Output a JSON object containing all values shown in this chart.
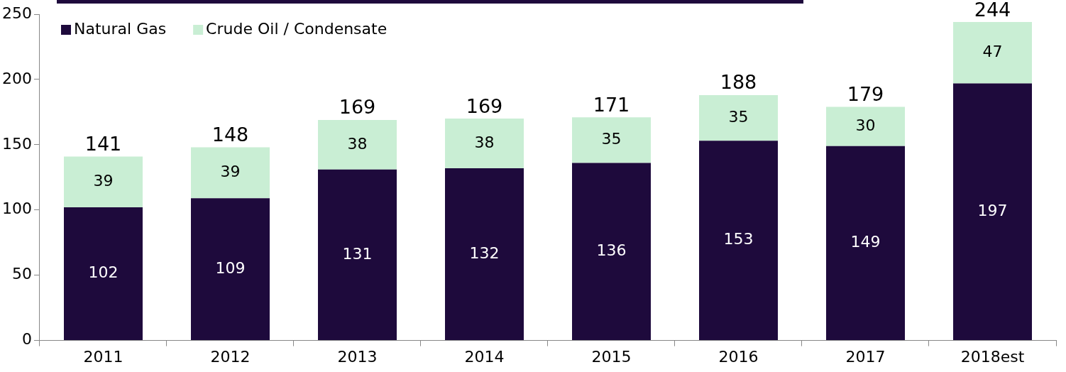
{
  "chart_data": {
    "type": "bar",
    "stacked": true,
    "categories": [
      "2011",
      "2012",
      "2013",
      "2014",
      "2015",
      "2016",
      "2017",
      "2018est"
    ],
    "series": [
      {
        "name": "Natural Gas",
        "color": "#1e0a3c",
        "values": [
          102,
          109,
          131,
          132,
          136,
          153,
          149,
          197
        ]
      },
      {
        "name": "Crude Oil / Condensate",
        "color": "#c9eed4",
        "values": [
          39,
          39,
          38,
          38,
          35,
          35,
          30,
          47
        ]
      }
    ],
    "totals": [
      "141",
      "148",
      "169",
      "169",
      "171",
      "188",
      "179",
      "244"
    ],
    "data_labels": true,
    "ylim": [
      0,
      250
    ],
    "yticks": [
      0,
      50,
      100,
      150,
      200,
      250
    ],
    "legend": "top left"
  }
}
